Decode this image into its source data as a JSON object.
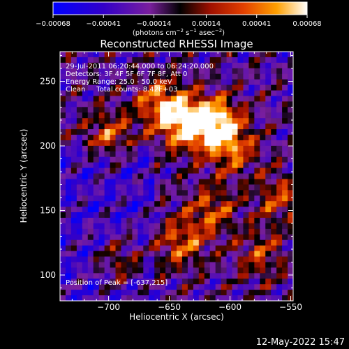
{
  "chart_data": {
    "type": "heatmap",
    "title": "Reconstructed RHESSI Image",
    "xlabel": "Heliocentric X (arcsec)",
    "ylabel": "Heliocentric Y (arcsec)",
    "xlim": [
      -740,
      -548
    ],
    "ylim": [
      80,
      273
    ],
    "x_ticks": [
      -700,
      -650,
      -600,
      -550
    ],
    "x_tick_labels": [
      "−700",
      "−650",
      "−600",
      "−550"
    ],
    "y_ticks": [
      100,
      150,
      200,
      250
    ],
    "y_tick_labels": [
      "100",
      "150",
      "200",
      "250"
    ],
    "colorbar": {
      "range": [
        -0.00068,
        0.00068
      ],
      "ticks": [
        -0.00068,
        -0.00041,
        -0.00014,
        0.00014,
        0.00041,
        0.00068
      ],
      "tick_labels": [
        "−0.00068",
        "−0.00041",
        "−0.00014",
        "0.00014",
        "0.00041",
        "0.00068"
      ],
      "unit_main": "(photons cm",
      "unit_sup1": "−2",
      "unit_mid": " s",
      "unit_sup2": "−1",
      "unit_mid2": " asec",
      "unit_sup3": "−2",
      "unit_end": ")"
    },
    "annotations": [
      "29-Jul-2011 06:20:44.000 to 06:24:20.000",
      "Detectors: 3F 4F 5F 6F 7F 8F, Att 0",
      "Energy Range: 25.0 - 50.0 keV",
      "Clean     Total counts: 8.42E+03"
    ],
    "peak_label": "Position of Peak = [-637,215]",
    "peak": [
      -637,
      215
    ],
    "bright_sources": [
      {
        "x": -636,
        "y": 217,
        "intensity": 1.0
      },
      {
        "x": -611,
        "y": 218,
        "intensity": 0.95
      },
      {
        "x": -658,
        "y": 233,
        "intensity": 0.7
      },
      {
        "x": -598,
        "y": 198,
        "intensity": 0.6
      },
      {
        "x": -615,
        "y": 150,
        "intensity": 0.55
      },
      {
        "x": -640,
        "y": 125,
        "intensity": 0.6
      },
      {
        "x": -560,
        "y": 160,
        "intensity": 0.5
      },
      {
        "x": -700,
        "y": 208,
        "intensity": 0.55
      },
      {
        "x": -690,
        "y": 110,
        "intensity": 0.5
      },
      {
        "x": -575,
        "y": 115,
        "intensity": 0.45
      }
    ]
  },
  "footer": {
    "timestamp": "12-May-2022 15:47"
  }
}
